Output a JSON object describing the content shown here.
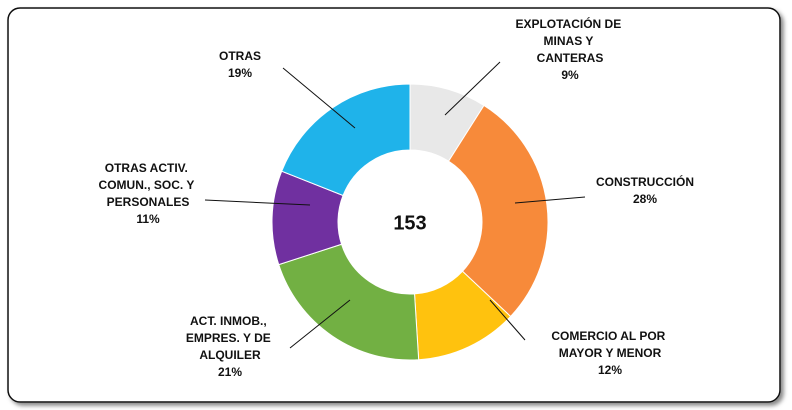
{
  "chart_data": {
    "type": "donut",
    "center_text": "153",
    "categories": [
      "EXPLOTACIÓN DE\nMINAS Y\nCANTERAS",
      "CONSTRUCCIÓN",
      "COMERCIO AL POR\nMAYOR Y MENOR",
      "ACT. INMOB.,\nEMPRES. Y DE\nALQUILER",
      "OTRAS ACTIV.\nCOMUN., SOC. Y\nPERSONALES",
      "OTRAS"
    ],
    "values": [
      9,
      28,
      12,
      21,
      11,
      19
    ],
    "value_labels": [
      "9%",
      "28%",
      "12%",
      "21%",
      "11%",
      "19%"
    ],
    "colors": [
      "#e8e8e8",
      "#f78a3a",
      "#ffc20e",
      "#72b043",
      "#7030a0",
      "#1fb3ea"
    ]
  }
}
